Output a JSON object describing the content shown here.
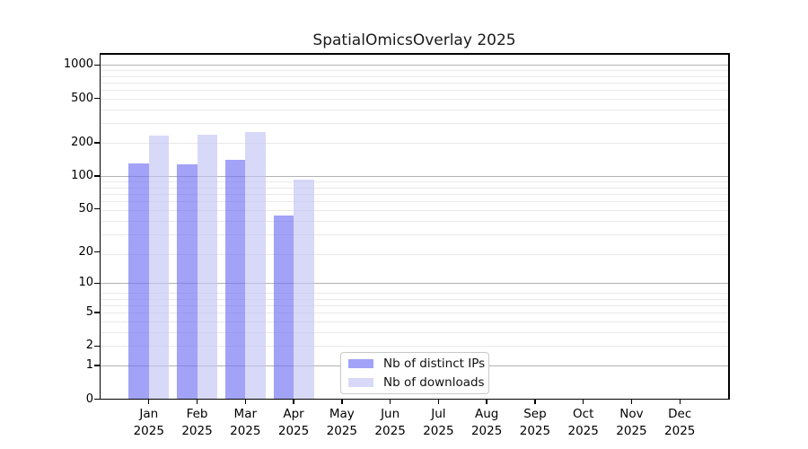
{
  "title": "SpatialOmicsOverlay 2025",
  "chart_data": {
    "type": "bar",
    "title": "SpatialOmicsOverlay 2025",
    "categories": [
      "Jan",
      "Feb",
      "Mar",
      "Apr",
      "May",
      "Jun",
      "Jul",
      "Aug",
      "Sep",
      "Oct",
      "Nov",
      "Dec"
    ],
    "year_label": "2025",
    "series": [
      {
        "name": "Nb of distinct IPs",
        "color": "#a2a2f6",
        "bar_rgba": "rgba(112,112,241,0.65)",
        "values": [
          131,
          127,
          141,
          44,
          0,
          0,
          0,
          0,
          0,
          0,
          0,
          0
        ]
      },
      {
        "name": "Nb of downloads",
        "color": "#d8d8f8",
        "bar_rgba": "rgba(195,195,244,0.65)",
        "values": [
          232,
          238,
          252,
          93,
          0,
          0,
          0,
          0,
          0,
          0,
          0,
          0
        ]
      }
    ],
    "yscale": "log10(x+1)",
    "y_tick_values": [
      0,
      1,
      2,
      5,
      10,
      20,
      50,
      100,
      200,
      500,
      1000
    ],
    "y_major_grid_values": [
      1,
      10,
      100,
      1000
    ],
    "ylim": [
      0,
      1259
    ],
    "grid": true,
    "legend_position": "inside-bottom-center-left",
    "colors": {
      "grid_major": "#b2b2b2",
      "grid_minor": "#e9e9e9",
      "axis": "#000000",
      "background": "#ffffff",
      "text": "#000000"
    }
  }
}
